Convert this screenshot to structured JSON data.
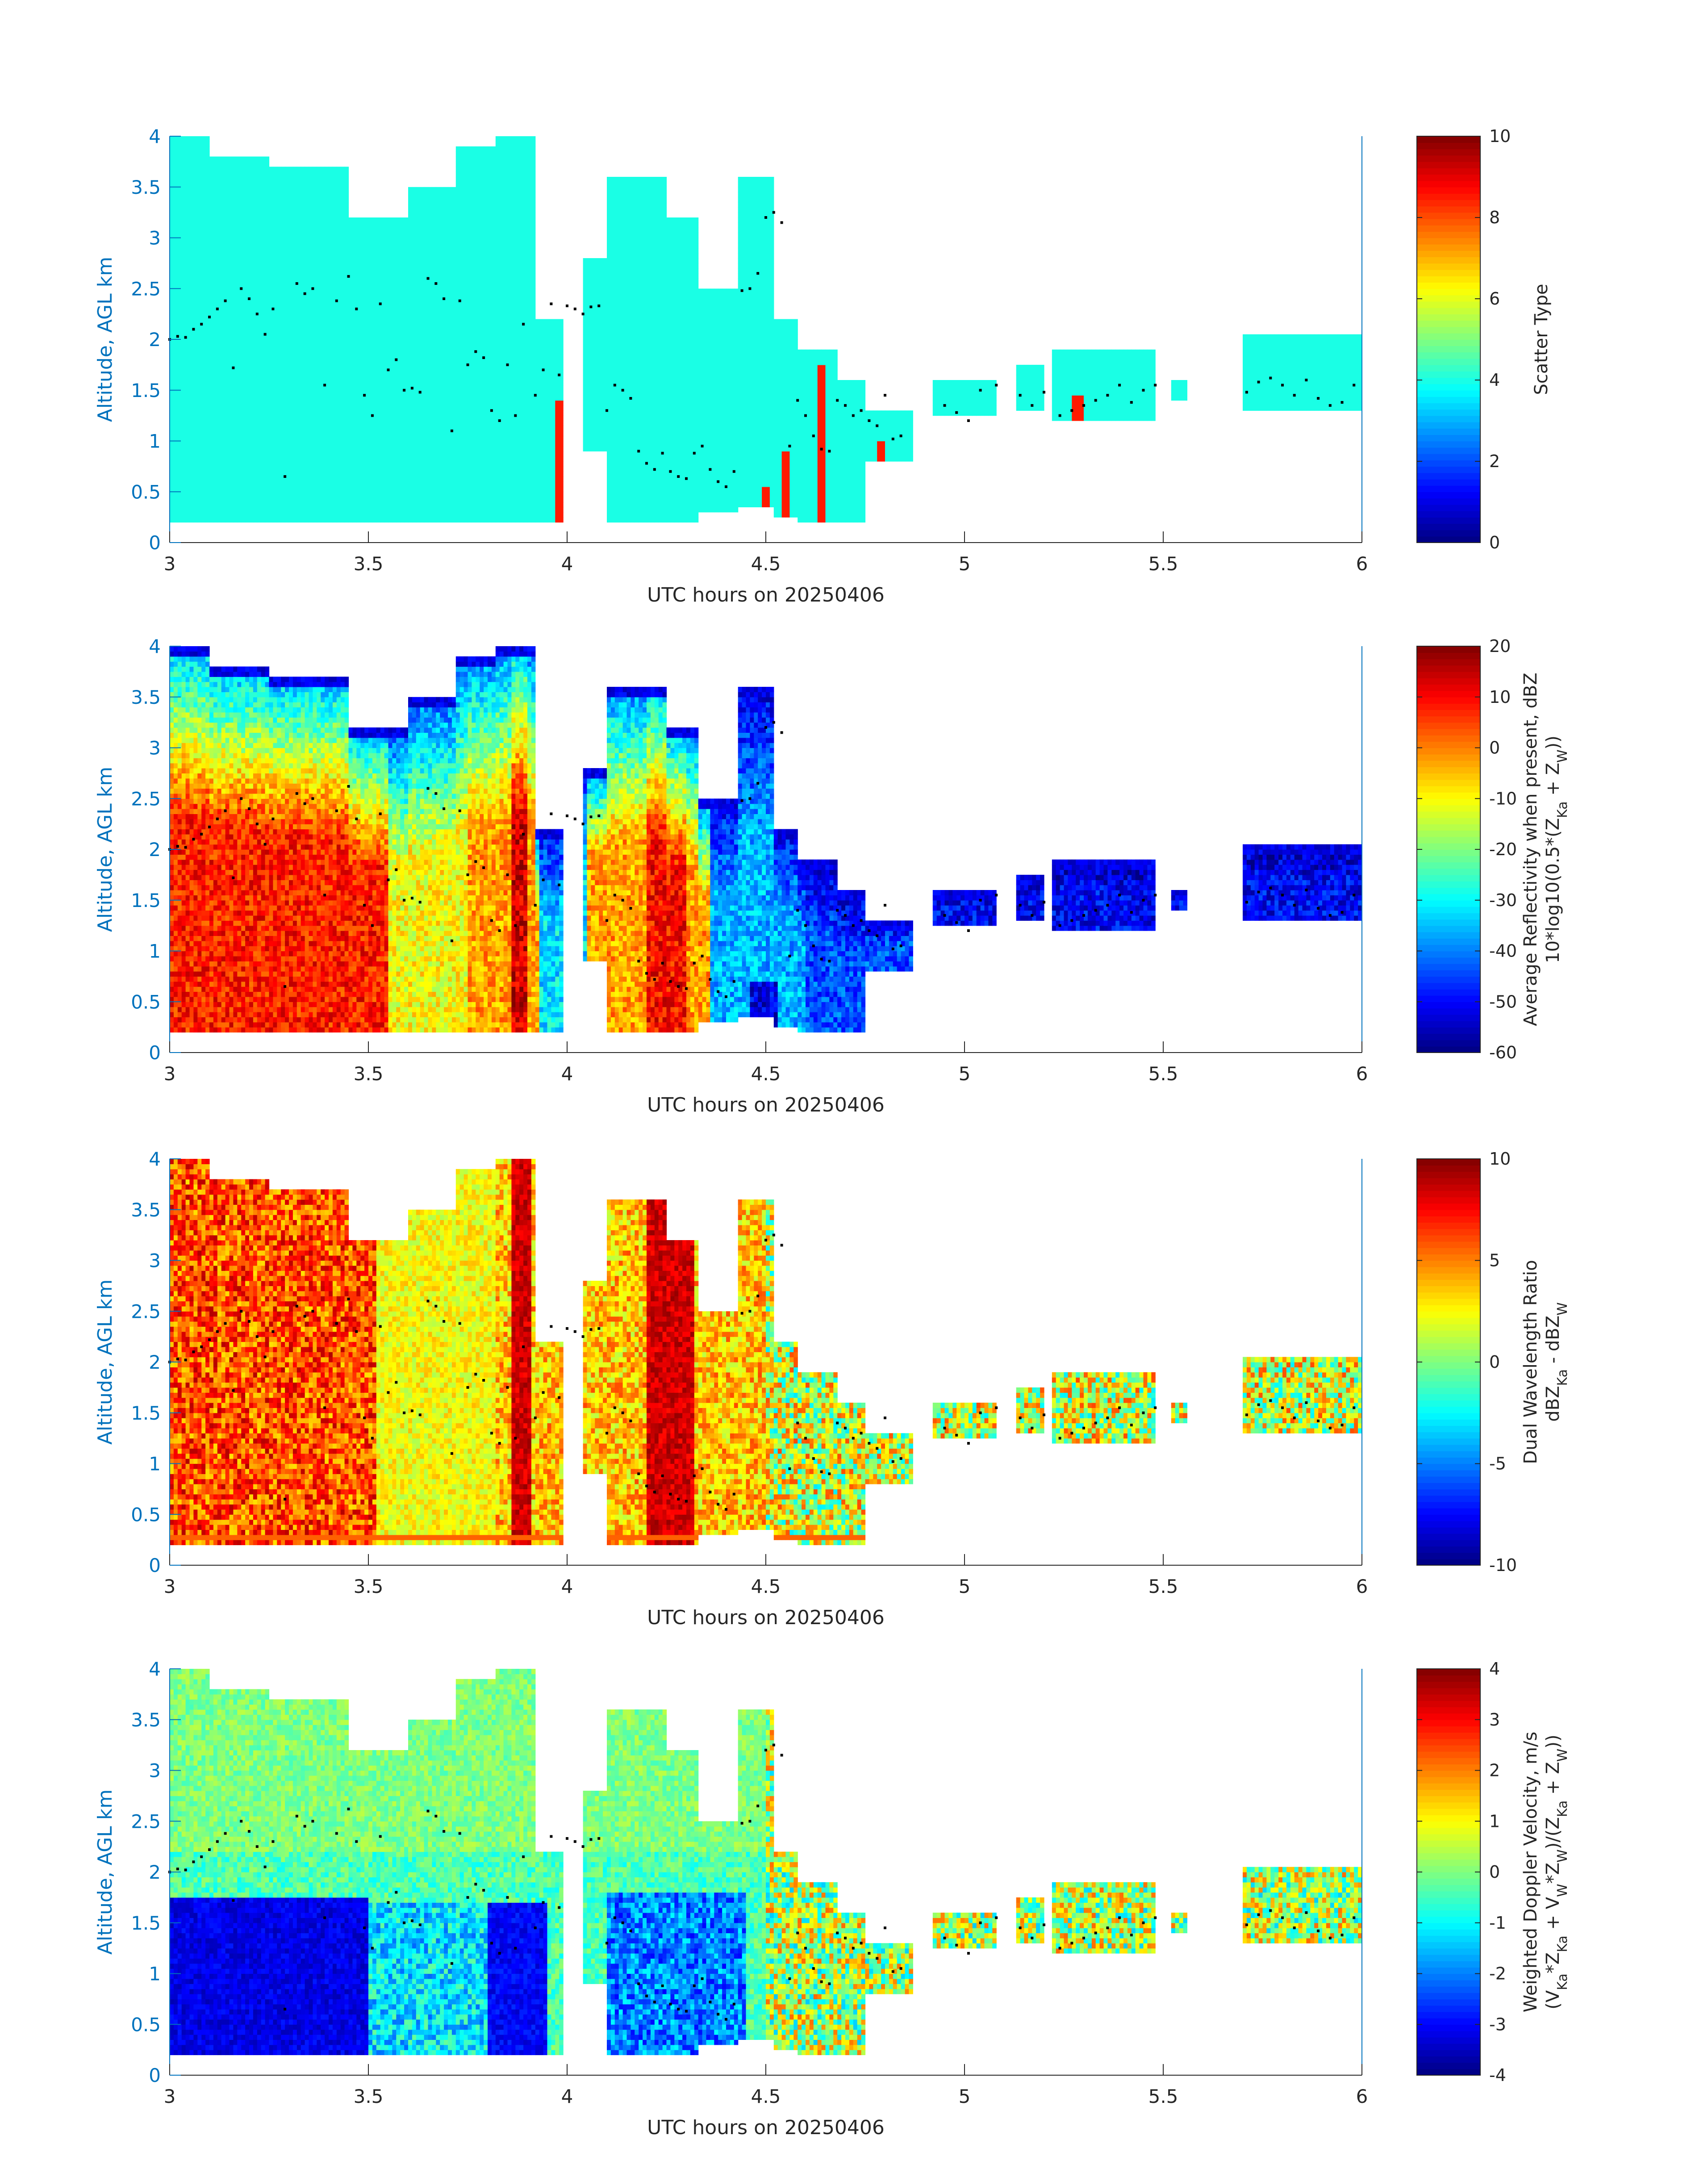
{
  "figure": {
    "colormap": "jet",
    "background": "#ffffff",
    "axis_color": "#0072bd",
    "text_color": "#262626"
  },
  "chart_data": [
    {
      "type": "heatmap",
      "id": "scatter-type",
      "xlabel": "UTC hours on 20250406",
      "ylabel": "Altitude, AGL km",
      "xlim": [
        3,
        6
      ],
      "ylim": [
        0,
        4
      ],
      "xticks": [
        "3",
        "3.5",
        "4",
        "4.5",
        "5",
        "5.5",
        "6"
      ],
      "yticks": [
        "0",
        "0.5",
        "1",
        "1.5",
        "2",
        "2.5",
        "3",
        "3.5",
        "4"
      ],
      "colorbar": {
        "label_lines": [
          "Scatter Type"
        ],
        "range": [
          0,
          10
        ],
        "ticks": [
          "0",
          "2",
          "4",
          "6",
          "8",
          "10"
        ]
      },
      "dominant_value": 4,
      "secondary_value": 8.5,
      "seed": 11
    },
    {
      "type": "heatmap",
      "id": "reflectivity",
      "xlabel": "UTC hours on 20250406",
      "ylabel": "Altitude, AGL km",
      "xlim": [
        3,
        6
      ],
      "ylim": [
        0,
        4
      ],
      "xticks": [
        "3",
        "3.5",
        "4",
        "4.5",
        "5",
        "5.5",
        "6"
      ],
      "yticks": [
        "0",
        "0.5",
        "1",
        "1.5",
        "2",
        "2.5",
        "3",
        "3.5",
        "4"
      ],
      "colorbar": {
        "label_lines": [
          "Average Reflectivity when present, dBZ",
          "10*log10(0.5*(Z",
          "Ka",
          " + Z",
          "W",
          "))"
        ],
        "range": [
          -60,
          20
        ],
        "ticks": [
          "-60",
          "-50",
          "-40",
          "-30",
          "-20",
          "-10",
          "0",
          "10",
          "20"
        ]
      },
      "seed": 23
    },
    {
      "type": "heatmap",
      "id": "dual-wavelength-ratio",
      "xlabel": "UTC hours on 20250406",
      "ylabel": "Altitude, AGL km",
      "xlim": [
        3,
        6
      ],
      "ylim": [
        0,
        4
      ],
      "xticks": [
        "3",
        "3.5",
        "4",
        "4.5",
        "5",
        "5.5",
        "6"
      ],
      "yticks": [
        "0",
        "0.5",
        "1",
        "1.5",
        "2",
        "2.5",
        "3",
        "3.5",
        "4"
      ],
      "colorbar": {
        "label_lines": [
          "Dual Wavelength Ratio",
          "dBZ",
          "Ka",
          " - dBZ",
          "W"
        ],
        "range": [
          -10,
          10
        ],
        "ticks": [
          "-10",
          "-5",
          "0",
          "5",
          "10"
        ]
      },
      "seed": 37
    },
    {
      "type": "heatmap",
      "id": "doppler-velocity",
      "xlabel": "UTC hours on 20250406",
      "ylabel": "Altitude, AGL km",
      "xlim": [
        3,
        6
      ],
      "ylim": [
        0,
        4
      ],
      "xticks": [
        "3",
        "3.5",
        "4",
        "4.5",
        "5",
        "5.5",
        "6"
      ],
      "yticks": [
        "0",
        "0.5",
        "1",
        "1.5",
        "2",
        "2.5",
        "3",
        "3.5",
        "4"
      ],
      "colorbar": {
        "label_lines": [
          "Weighted Doppler Velocity, m/s",
          "(V",
          "Ka",
          "*Z",
          "Ka",
          " + V",
          "W",
          "*Z",
          "W",
          ")/(Z",
          "Ka",
          " + Z",
          "W",
          "))"
        ],
        "range": [
          -4,
          4
        ],
        "ticks": [
          "-4",
          "-3",
          "-2",
          "-1",
          "0",
          "1",
          "2",
          "3",
          "4"
        ]
      },
      "seed": 53
    }
  ],
  "cloud_mask": {
    "columns": [
      {
        "x0": 3.0,
        "x1": 3.1,
        "base": 0.2,
        "top": 4.0
      },
      {
        "x0": 3.1,
        "x1": 3.25,
        "base": 0.2,
        "top": 3.8
      },
      {
        "x0": 3.25,
        "x1": 3.45,
        "base": 0.2,
        "top": 3.7
      },
      {
        "x0": 3.45,
        "x1": 3.6,
        "base": 0.2,
        "top": 3.2
      },
      {
        "x0": 3.6,
        "x1": 3.72,
        "base": 0.2,
        "top": 3.5
      },
      {
        "x0": 3.72,
        "x1": 3.82,
        "base": 0.2,
        "top": 3.9
      },
      {
        "x0": 3.82,
        "x1": 3.92,
        "base": 0.2,
        "top": 4.0
      },
      {
        "x0": 3.92,
        "x1": 3.99,
        "base": 0.2,
        "top": 2.2
      },
      {
        "x0": 4.04,
        "x1": 4.1,
        "base": 0.9,
        "top": 2.8
      },
      {
        "x0": 4.1,
        "x1": 4.25,
        "base": 0.2,
        "top": 3.6
      },
      {
        "x0": 4.25,
        "x1": 4.33,
        "base": 0.2,
        "top": 3.2
      },
      {
        "x0": 4.33,
        "x1": 4.43,
        "base": 0.3,
        "top": 2.5
      },
      {
        "x0": 4.43,
        "x1": 4.52,
        "base": 0.35,
        "top": 3.6
      },
      {
        "x0": 4.52,
        "x1": 4.58,
        "base": 0.25,
        "top": 2.2
      },
      {
        "x0": 4.58,
        "x1": 4.68,
        "base": 0.2,
        "top": 1.9
      },
      {
        "x0": 4.68,
        "x1": 4.75,
        "base": 0.2,
        "top": 1.6
      },
      {
        "x0": 4.75,
        "x1": 4.87,
        "base": 0.8,
        "top": 1.3
      },
      {
        "x0": 4.92,
        "x1": 5.08,
        "base": 1.25,
        "top": 1.6
      },
      {
        "x0": 5.13,
        "x1": 5.2,
        "base": 1.3,
        "top": 1.75
      },
      {
        "x0": 5.22,
        "x1": 5.48,
        "base": 1.2,
        "top": 1.9
      },
      {
        "x0": 5.52,
        "x1": 5.56,
        "base": 1.4,
        "top": 1.6
      },
      {
        "x0": 5.7,
        "x1": 6.0,
        "base": 1.3,
        "top": 2.05
      }
    ]
  },
  "overlay_points": [
    {
      "x": 3.0,
      "y": 2.0
    },
    {
      "x": 3.02,
      "y": 2.03
    },
    {
      "x": 3.04,
      "y": 2.02
    },
    {
      "x": 3.06,
      "y": 2.1
    },
    {
      "x": 3.08,
      "y": 2.15
    },
    {
      "x": 3.1,
      "y": 2.22
    },
    {
      "x": 3.12,
      "y": 2.3
    },
    {
      "x": 3.14,
      "y": 2.38
    },
    {
      "x": 3.16,
      "y": 1.72
    },
    {
      "x": 3.18,
      "y": 2.5
    },
    {
      "x": 3.2,
      "y": 2.4
    },
    {
      "x": 3.22,
      "y": 2.25
    },
    {
      "x": 3.24,
      "y": 2.05
    },
    {
      "x": 3.26,
      "y": 2.3
    },
    {
      "x": 3.29,
      "y": 0.65
    },
    {
      "x": 3.32,
      "y": 2.55
    },
    {
      "x": 3.34,
      "y": 2.45
    },
    {
      "x": 3.36,
      "y": 2.5
    },
    {
      "x": 3.39,
      "y": 1.55
    },
    {
      "x": 3.42,
      "y": 2.38
    },
    {
      "x": 3.45,
      "y": 2.62
    },
    {
      "x": 3.47,
      "y": 2.3
    },
    {
      "x": 3.49,
      "y": 1.45
    },
    {
      "x": 3.51,
      "y": 1.25
    },
    {
      "x": 3.53,
      "y": 2.35
    },
    {
      "x": 3.55,
      "y": 1.7
    },
    {
      "x": 3.57,
      "y": 1.8
    },
    {
      "x": 3.59,
      "y": 1.5
    },
    {
      "x": 3.61,
      "y": 1.52
    },
    {
      "x": 3.63,
      "y": 1.48
    },
    {
      "x": 3.65,
      "y": 2.6
    },
    {
      "x": 3.67,
      "y": 2.55
    },
    {
      "x": 3.69,
      "y": 2.4
    },
    {
      "x": 3.71,
      "y": 1.1
    },
    {
      "x": 3.73,
      "y": 2.38
    },
    {
      "x": 3.75,
      "y": 1.75
    },
    {
      "x": 3.77,
      "y": 1.88
    },
    {
      "x": 3.79,
      "y": 1.82
    },
    {
      "x": 3.81,
      "y": 1.3
    },
    {
      "x": 3.83,
      "y": 1.2
    },
    {
      "x": 3.85,
      "y": 1.75
    },
    {
      "x": 3.87,
      "y": 1.25
    },
    {
      "x": 3.89,
      "y": 2.15
    },
    {
      "x": 3.92,
      "y": 1.45
    },
    {
      "x": 3.94,
      "y": 1.7
    },
    {
      "x": 3.96,
      "y": 2.35
    },
    {
      "x": 3.98,
      "y": 1.65
    },
    {
      "x": 4.0,
      "y": 2.33
    },
    {
      "x": 4.02,
      "y": 2.3
    },
    {
      "x": 4.04,
      "y": 2.25
    },
    {
      "x": 4.06,
      "y": 2.32
    },
    {
      "x": 4.08,
      "y": 2.33
    },
    {
      "x": 4.1,
      "y": 1.3
    },
    {
      "x": 4.12,
      "y": 1.55
    },
    {
      "x": 4.14,
      "y": 1.5
    },
    {
      "x": 4.16,
      "y": 1.42
    },
    {
      "x": 4.18,
      "y": 0.9
    },
    {
      "x": 4.2,
      "y": 0.78
    },
    {
      "x": 4.22,
      "y": 0.72
    },
    {
      "x": 4.24,
      "y": 0.88
    },
    {
      "x": 4.26,
      "y": 0.7
    },
    {
      "x": 4.28,
      "y": 0.65
    },
    {
      "x": 4.3,
      "y": 0.63
    },
    {
      "x": 4.32,
      "y": 0.88
    },
    {
      "x": 4.34,
      "y": 0.95
    },
    {
      "x": 4.36,
      "y": 0.72
    },
    {
      "x": 4.38,
      "y": 0.6
    },
    {
      "x": 4.4,
      "y": 0.55
    },
    {
      "x": 4.42,
      "y": 0.7
    },
    {
      "x": 4.44,
      "y": 2.48
    },
    {
      "x": 4.46,
      "y": 2.5
    },
    {
      "x": 4.48,
      "y": 2.65
    },
    {
      "x": 4.5,
      "y": 3.2
    },
    {
      "x": 4.52,
      "y": 3.25
    },
    {
      "x": 4.54,
      "y": 3.15
    },
    {
      "x": 4.56,
      "y": 0.95
    },
    {
      "x": 4.58,
      "y": 1.4
    },
    {
      "x": 4.6,
      "y": 1.25
    },
    {
      "x": 4.62,
      "y": 1.05
    },
    {
      "x": 4.64,
      "y": 0.92
    },
    {
      "x": 4.66,
      "y": 0.9
    },
    {
      "x": 4.68,
      "y": 1.4
    },
    {
      "x": 4.7,
      "y": 1.35
    },
    {
      "x": 4.72,
      "y": 1.25
    },
    {
      "x": 4.74,
      "y": 1.3
    },
    {
      "x": 4.76,
      "y": 1.2
    },
    {
      "x": 4.78,
      "y": 1.15
    },
    {
      "x": 4.8,
      "y": 1.45
    },
    {
      "x": 4.82,
      "y": 1.02
    },
    {
      "x": 4.84,
      "y": 1.05
    },
    {
      "x": 4.95,
      "y": 1.35
    },
    {
      "x": 4.98,
      "y": 1.28
    },
    {
      "x": 5.01,
      "y": 1.2
    },
    {
      "x": 5.04,
      "y": 1.5
    },
    {
      "x": 5.08,
      "y": 1.55
    },
    {
      "x": 5.14,
      "y": 1.45
    },
    {
      "x": 5.17,
      "y": 1.35
    },
    {
      "x": 5.2,
      "y": 1.48
    },
    {
      "x": 5.24,
      "y": 1.25
    },
    {
      "x": 5.27,
      "y": 1.3
    },
    {
      "x": 5.3,
      "y": 1.35
    },
    {
      "x": 5.33,
      "y": 1.4
    },
    {
      "x": 5.36,
      "y": 1.45
    },
    {
      "x": 5.39,
      "y": 1.55
    },
    {
      "x": 5.42,
      "y": 1.38
    },
    {
      "x": 5.45,
      "y": 1.5
    },
    {
      "x": 5.48,
      "y": 1.55
    },
    {
      "x": 5.71,
      "y": 1.48
    },
    {
      "x": 5.74,
      "y": 1.58
    },
    {
      "x": 5.77,
      "y": 1.62
    },
    {
      "x": 5.8,
      "y": 1.55
    },
    {
      "x": 5.83,
      "y": 1.45
    },
    {
      "x": 5.86,
      "y": 1.6
    },
    {
      "x": 5.89,
      "y": 1.42
    },
    {
      "x": 5.92,
      "y": 1.35
    },
    {
      "x": 5.95,
      "y": 1.38
    },
    {
      "x": 5.98,
      "y": 1.55
    }
  ]
}
